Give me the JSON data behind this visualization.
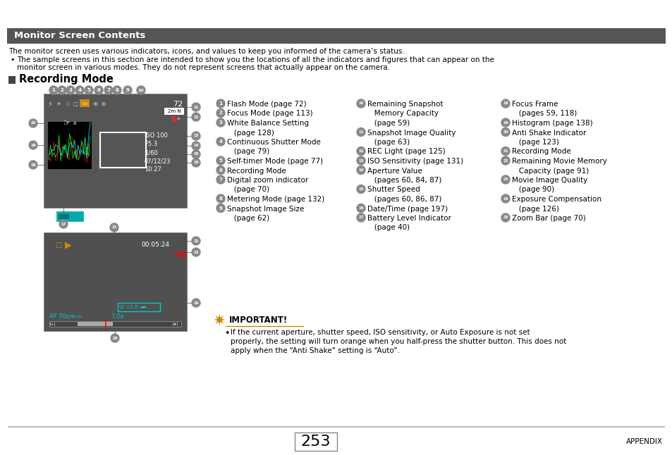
{
  "title": "Monitor Screen Contents",
  "title_bg": "#555555",
  "title_fg": "#ffffff",
  "page_bg": "#ffffff",
  "body_text1": "The monitor screen uses various indicators, icons, and values to keep you informed of the camera’s status.",
  "body_text2_bullet": "The sample screens in this section are intended to show you the locations of all the indicators and figures that can appear on the",
  "body_text2_cont": "monitor screen in various modes. They do not represent screens that actually appear on the camera.",
  "section_title": "Recording Mode",
  "camera_screen_bg": "#555555",
  "camera_screen2_bg": "#505050",
  "page_number": "253",
  "footer_text": "APPENDIX",
  "col1_items": [
    [
      "1",
      "Flash Mode (page 72)"
    ],
    [
      "2",
      "Focus Mode (page 113)"
    ],
    [
      "3",
      "White Balance Setting"
    ],
    [
      "",
      "   (page 128)"
    ],
    [
      "4",
      "Continuous Shutter Mode"
    ],
    [
      "",
      "   (page 79)"
    ],
    [
      "5",
      "Self-timer Mode (page 77)"
    ],
    [
      "6",
      "Recording Mode"
    ],
    [
      "7",
      "Digital zoom indicator"
    ],
    [
      "",
      "   (page 70)"
    ],
    [
      "8",
      "Metering Mode (page 132)"
    ],
    [
      "9",
      "Snapshot Image Size"
    ],
    [
      "",
      "   (page 62)"
    ]
  ],
  "col2_items": [
    [
      "10",
      "Remaining Snapshot"
    ],
    [
      "",
      "   Memory Capacity"
    ],
    [
      "",
      "   (page 59)"
    ],
    [
      "11",
      "Snapshot Image Quality"
    ],
    [
      "",
      "   (page 63)"
    ],
    [
      "12",
      "REC Light (page 125)"
    ],
    [
      "13",
      "ISO Sensitivity (page 131)"
    ],
    [
      "14",
      "Aperture Value"
    ],
    [
      "",
      "   (pages 60, 84, 87)"
    ],
    [
      "15",
      "Shutter Speed"
    ],
    [
      "",
      "   (pages 60, 86, 87)"
    ],
    [
      "16",
      "Date/Time (page 197)"
    ],
    [
      "17",
      "Battery Level Indicator"
    ],
    [
      "",
      "   (page 40)"
    ]
  ],
  "col3_items": [
    [
      "18",
      "Focus Frame"
    ],
    [
      "",
      "   (pages 59, 118)"
    ],
    [
      "19",
      "Histogram (page 138)"
    ],
    [
      "20",
      "Anti Shake Indicator"
    ],
    [
      "",
      "   (page 123)"
    ],
    [
      "21",
      "Recording Mode"
    ],
    [
      "22",
      "Remaining Movie Memory"
    ],
    [
      "",
      "   Capacity (page 91)"
    ],
    [
      "23",
      "Movie Image Quality"
    ],
    [
      "",
      "   (page 90)"
    ],
    [
      "24",
      "Exposure Compensation"
    ],
    [
      "",
      "   (page 126)"
    ],
    [
      "25",
      "Zoom Bar (page 70)"
    ]
  ],
  "important_title": "IMPORTANT!",
  "important_line1": "If the current aperture, shutter speed, ISO sensitivity, or Auto Exposure is not set",
  "important_line2": "properly, the setting will turn orange when you half-press the shutter button. This does not",
  "important_line3": "apply when the “Anti Shake” setting is “Auto”."
}
